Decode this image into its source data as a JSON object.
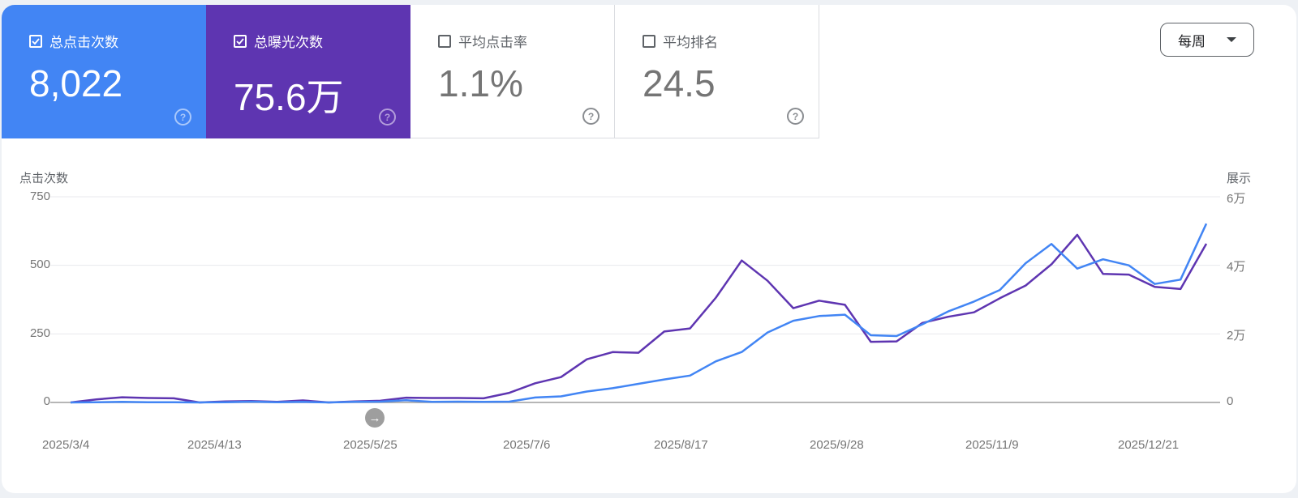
{
  "metrics": [
    {
      "label": "总点击次数",
      "value": "8,022",
      "checked": true,
      "color": "#4285f4"
    },
    {
      "label": "总曝光次数",
      "value": "75.6万",
      "checked": true,
      "color": "#5e35b1"
    },
    {
      "label": "平均点击率",
      "value": "1.1%",
      "checked": false
    },
    {
      "label": "平均排名",
      "value": "24.5",
      "checked": false
    }
  ],
  "period_select": {
    "value": "每周"
  },
  "chart_data": {
    "type": "line",
    "left_axis": {
      "title": "点击次数",
      "ticks": [
        "750",
        "500",
        "250",
        "0"
      ],
      "range": [
        0,
        750
      ]
    },
    "right_axis": {
      "title": "展示",
      "ticks": [
        "6万",
        "4万",
        "2万",
        "0"
      ],
      "range": [
        0,
        60000
      ]
    },
    "x_tick_labels": [
      "2025/3/4",
      "2025/4/13",
      "2025/5/25",
      "2025/7/6",
      "2025/8/17",
      "2025/9/28",
      "2025/11/9",
      "2025/12/21"
    ],
    "grid": true,
    "series": [
      {
        "name": "点击次数",
        "axis": "left",
        "color": "#4285f4",
        "values": [
          0,
          1,
          2,
          1,
          1,
          0,
          1,
          3,
          1,
          2,
          0,
          2,
          3,
          8,
          2,
          3,
          2,
          3,
          18,
          22,
          40,
          52,
          68,
          84,
          98,
          150,
          184,
          255,
          298,
          315,
          320,
          245,
          242,
          285,
          332,
          368,
          410,
          508,
          578,
          488,
          522,
          500,
          432,
          448,
          652
        ]
      },
      {
        "name": "展示",
        "axis": "right",
        "color": "#5e35b1",
        "values": [
          0,
          900,
          1500,
          1300,
          1200,
          0,
          300,
          400,
          200,
          600,
          0,
          300,
          500,
          1400,
          1300,
          1300,
          1200,
          2800,
          5600,
          7400,
          12600,
          14700,
          14500,
          20700,
          21600,
          30600,
          41400,
          35500,
          27500,
          29700,
          28500,
          17700,
          17800,
          23200,
          25000,
          26300,
          30400,
          34100,
          40300,
          48900,
          37500,
          37300,
          33700,
          33100,
          46300
        ]
      }
    ]
  }
}
